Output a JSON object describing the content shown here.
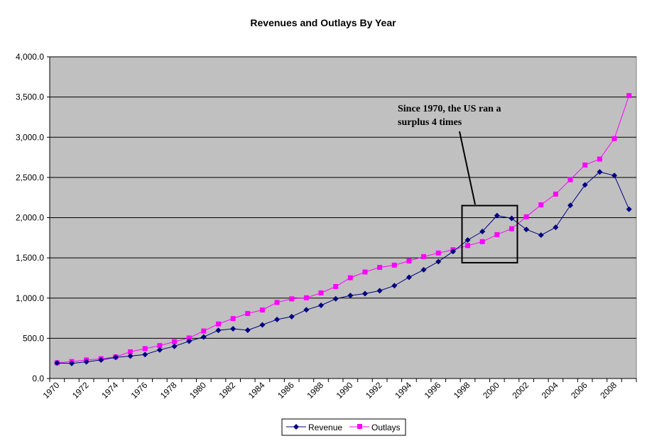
{
  "chart_data": {
    "type": "line",
    "title": "Revenues and Outlays By Year",
    "xlabel": "",
    "ylabel": "",
    "ylim": [
      0,
      4000
    ],
    "yticks": [
      "0.0",
      "500.0",
      "1,000.0",
      "1,500.0",
      "2,000.0",
      "2,500.0",
      "3,000.0",
      "3,500.0",
      "4,000.0"
    ],
    "grid": true,
    "legend_position": "bottom",
    "x": [
      1970,
      1971,
      1972,
      1973,
      1974,
      1975,
      1976,
      1977,
      1978,
      1979,
      1980,
      1981,
      1982,
      1983,
      1984,
      1985,
      1986,
      1987,
      1988,
      1989,
      1990,
      1991,
      1992,
      1993,
      1994,
      1995,
      1996,
      1997,
      1998,
      1999,
      2000,
      2001,
      2002,
      2003,
      2004,
      2005,
      2006,
      2007,
      2008,
      2009
    ],
    "xtick_labels": [
      "1970",
      "1972",
      "1974",
      "1976",
      "1978",
      "1980",
      "1982",
      "1984",
      "1986",
      "1988",
      "1990",
      "1992",
      "1994",
      "1996",
      "1998",
      "2000",
      "2002",
      "2004",
      "2006",
      "2008"
    ],
    "series": [
      {
        "name": "Revenue",
        "color": "#000080",
        "marker": "diamond",
        "values": [
          192.8,
          187.1,
          207.3,
          230.8,
          263.2,
          279.1,
          298.1,
          355.6,
          399.6,
          463.3,
          517.1,
          599.3,
          617.8,
          600.6,
          666.4,
          734.0,
          769.2,
          854.3,
          909.2,
          991.1,
          1032.0,
          1055.0,
          1091.2,
          1154.3,
          1258.6,
          1351.8,
          1453.1,
          1579.2,
          1721.7,
          1827.5,
          2025.2,
          1991.1,
          1853.1,
          1782.3,
          1880.1,
          2153.6,
          2406.9,
          2568.0,
          2524.0,
          2105.0
        ]
      },
      {
        "name": "Outlays",
        "color": "#FF00FF",
        "marker": "square",
        "values": [
          195.6,
          210.2,
          230.7,
          245.7,
          269.4,
          332.3,
          371.8,
          409.2,
          458.7,
          504.0,
          590.9,
          678.2,
          745.7,
          808.4,
          851.8,
          946.3,
          990.4,
          1004.0,
          1064.4,
          1143.7,
          1253.0,
          1324.2,
          1381.5,
          1409.4,
          1461.8,
          1515.7,
          1560.5,
          1601.1,
          1652.5,
          1701.8,
          1789.0,
          1862.8,
          2010.9,
          2159.9,
          2292.8,
          2472.0,
          2655.1,
          2728.7,
          2982.5,
          3517.7
        ]
      }
    ],
    "annotation": {
      "lines": [
        "Since 1970, the US ran a",
        "surplus 4 times"
      ],
      "highlight_years": [
        1998,
        2001
      ]
    },
    "plot_background": "#C0C0C0"
  }
}
